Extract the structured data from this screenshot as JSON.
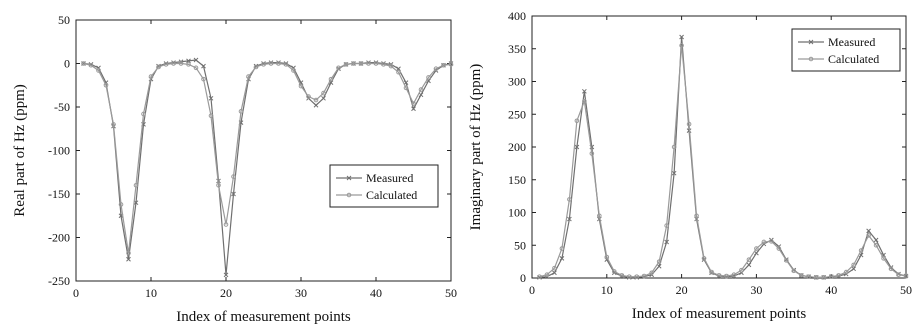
{
  "chart_data": [
    {
      "type": "line",
      "title": "",
      "xlabel": "Index of measurement points",
      "ylabel": "Real part of Hz (ppm)",
      "xlim": [
        0,
        50
      ],
      "ylim": [
        -250,
        50
      ],
      "xticks": [
        0,
        10,
        20,
        30,
        40,
        50
      ],
      "yticks": [
        50,
        0,
        -50,
        -100,
        -150,
        -200,
        -250
      ],
      "grid": false,
      "legend_position": "center-right",
      "x": [
        1,
        2,
        3,
        4,
        5,
        6,
        7,
        8,
        9,
        10,
        11,
        12,
        13,
        14,
        15,
        16,
        17,
        18,
        19,
        20,
        21,
        22,
        23,
        24,
        25,
        26,
        27,
        28,
        29,
        30,
        31,
        32,
        33,
        34,
        35,
        36,
        37,
        38,
        39,
        40,
        41,
        42,
        43,
        44,
        45,
        46,
        47,
        48,
        49,
        50
      ],
      "series": [
        {
          "name": "Measured",
          "color": "#6f6f6f",
          "marker": "x",
          "values": [
            0,
            -1,
            -5,
            -22,
            -72,
            -175,
            -225,
            -160,
            -70,
            -18,
            -3,
            0,
            1,
            2,
            3,
            4,
            -3,
            -40,
            -135,
            -243,
            -150,
            -68,
            -18,
            -3,
            0,
            1,
            1,
            0,
            -5,
            -22,
            -40,
            -48,
            -40,
            -22,
            -6,
            -1,
            0,
            0,
            1,
            1,
            0,
            -1,
            -6,
            -22,
            -52,
            -36,
            -20,
            -8,
            -2,
            0
          ]
        },
        {
          "name": "Calculated",
          "color": "#9a9a9a",
          "marker": "o",
          "values": [
            0,
            -2,
            -8,
            -25,
            -70,
            -162,
            -218,
            -140,
            -58,
            -15,
            -4,
            -1,
            0,
            0,
            -1,
            -5,
            -18,
            -60,
            -140,
            -185,
            -130,
            -55,
            -15,
            -4,
            -1,
            0,
            0,
            -1,
            -8,
            -26,
            -38,
            -42,
            -34,
            -18,
            -5,
            -1,
            0,
            0,
            0,
            0,
            -1,
            -3,
            -10,
            -28,
            -46,
            -30,
            -16,
            -6,
            -2,
            -1
          ]
        }
      ]
    },
    {
      "type": "line",
      "title": "",
      "xlabel": "Index of measurement points",
      "ylabel": "Imaginary part of Hz (ppm)",
      "xlim": [
        0,
        50
      ],
      "ylim": [
        0,
        400
      ],
      "xticks": [
        0,
        10,
        20,
        30,
        40,
        50
      ],
      "yticks": [
        0,
        50,
        100,
        150,
        200,
        250,
        300,
        350,
        400
      ],
      "grid": false,
      "legend_position": "top-right",
      "x": [
        1,
        2,
        3,
        4,
        5,
        6,
        7,
        8,
        9,
        10,
        11,
        12,
        13,
        14,
        15,
        16,
        17,
        18,
        19,
        20,
        21,
        22,
        23,
        24,
        25,
        26,
        27,
        28,
        29,
        30,
        31,
        32,
        33,
        34,
        35,
        36,
        37,
        38,
        39,
        40,
        41,
        42,
        43,
        44,
        45,
        46,
        47,
        48,
        49,
        50
      ],
      "series": [
        {
          "name": "Measured",
          "color": "#6f6f6f",
          "marker": "x",
          "values": [
            1,
            2,
            8,
            30,
            90,
            200,
            285,
            200,
            90,
            28,
            8,
            3,
            1,
            1,
            2,
            5,
            18,
            55,
            160,
            368,
            225,
            90,
            28,
            8,
            3,
            2,
            3,
            8,
            20,
            38,
            52,
            58,
            48,
            28,
            12,
            4,
            2,
            1,
            1,
            2,
            3,
            6,
            14,
            35,
            72,
            58,
            35,
            16,
            6,
            3
          ]
        },
        {
          "name": "Calculated",
          "color": "#9a9a9a",
          "marker": "o",
          "values": [
            2,
            5,
            15,
            45,
            120,
            240,
            270,
            190,
            95,
            32,
            10,
            4,
            2,
            2,
            3,
            8,
            25,
            80,
            200,
            355,
            235,
            95,
            30,
            9,
            4,
            3,
            5,
            12,
            28,
            45,
            55,
            56,
            45,
            27,
            11,
            4,
            2,
            1,
            1,
            2,
            4,
            9,
            20,
            42,
            65,
            50,
            30,
            14,
            5,
            3
          ]
        }
      ]
    }
  ]
}
